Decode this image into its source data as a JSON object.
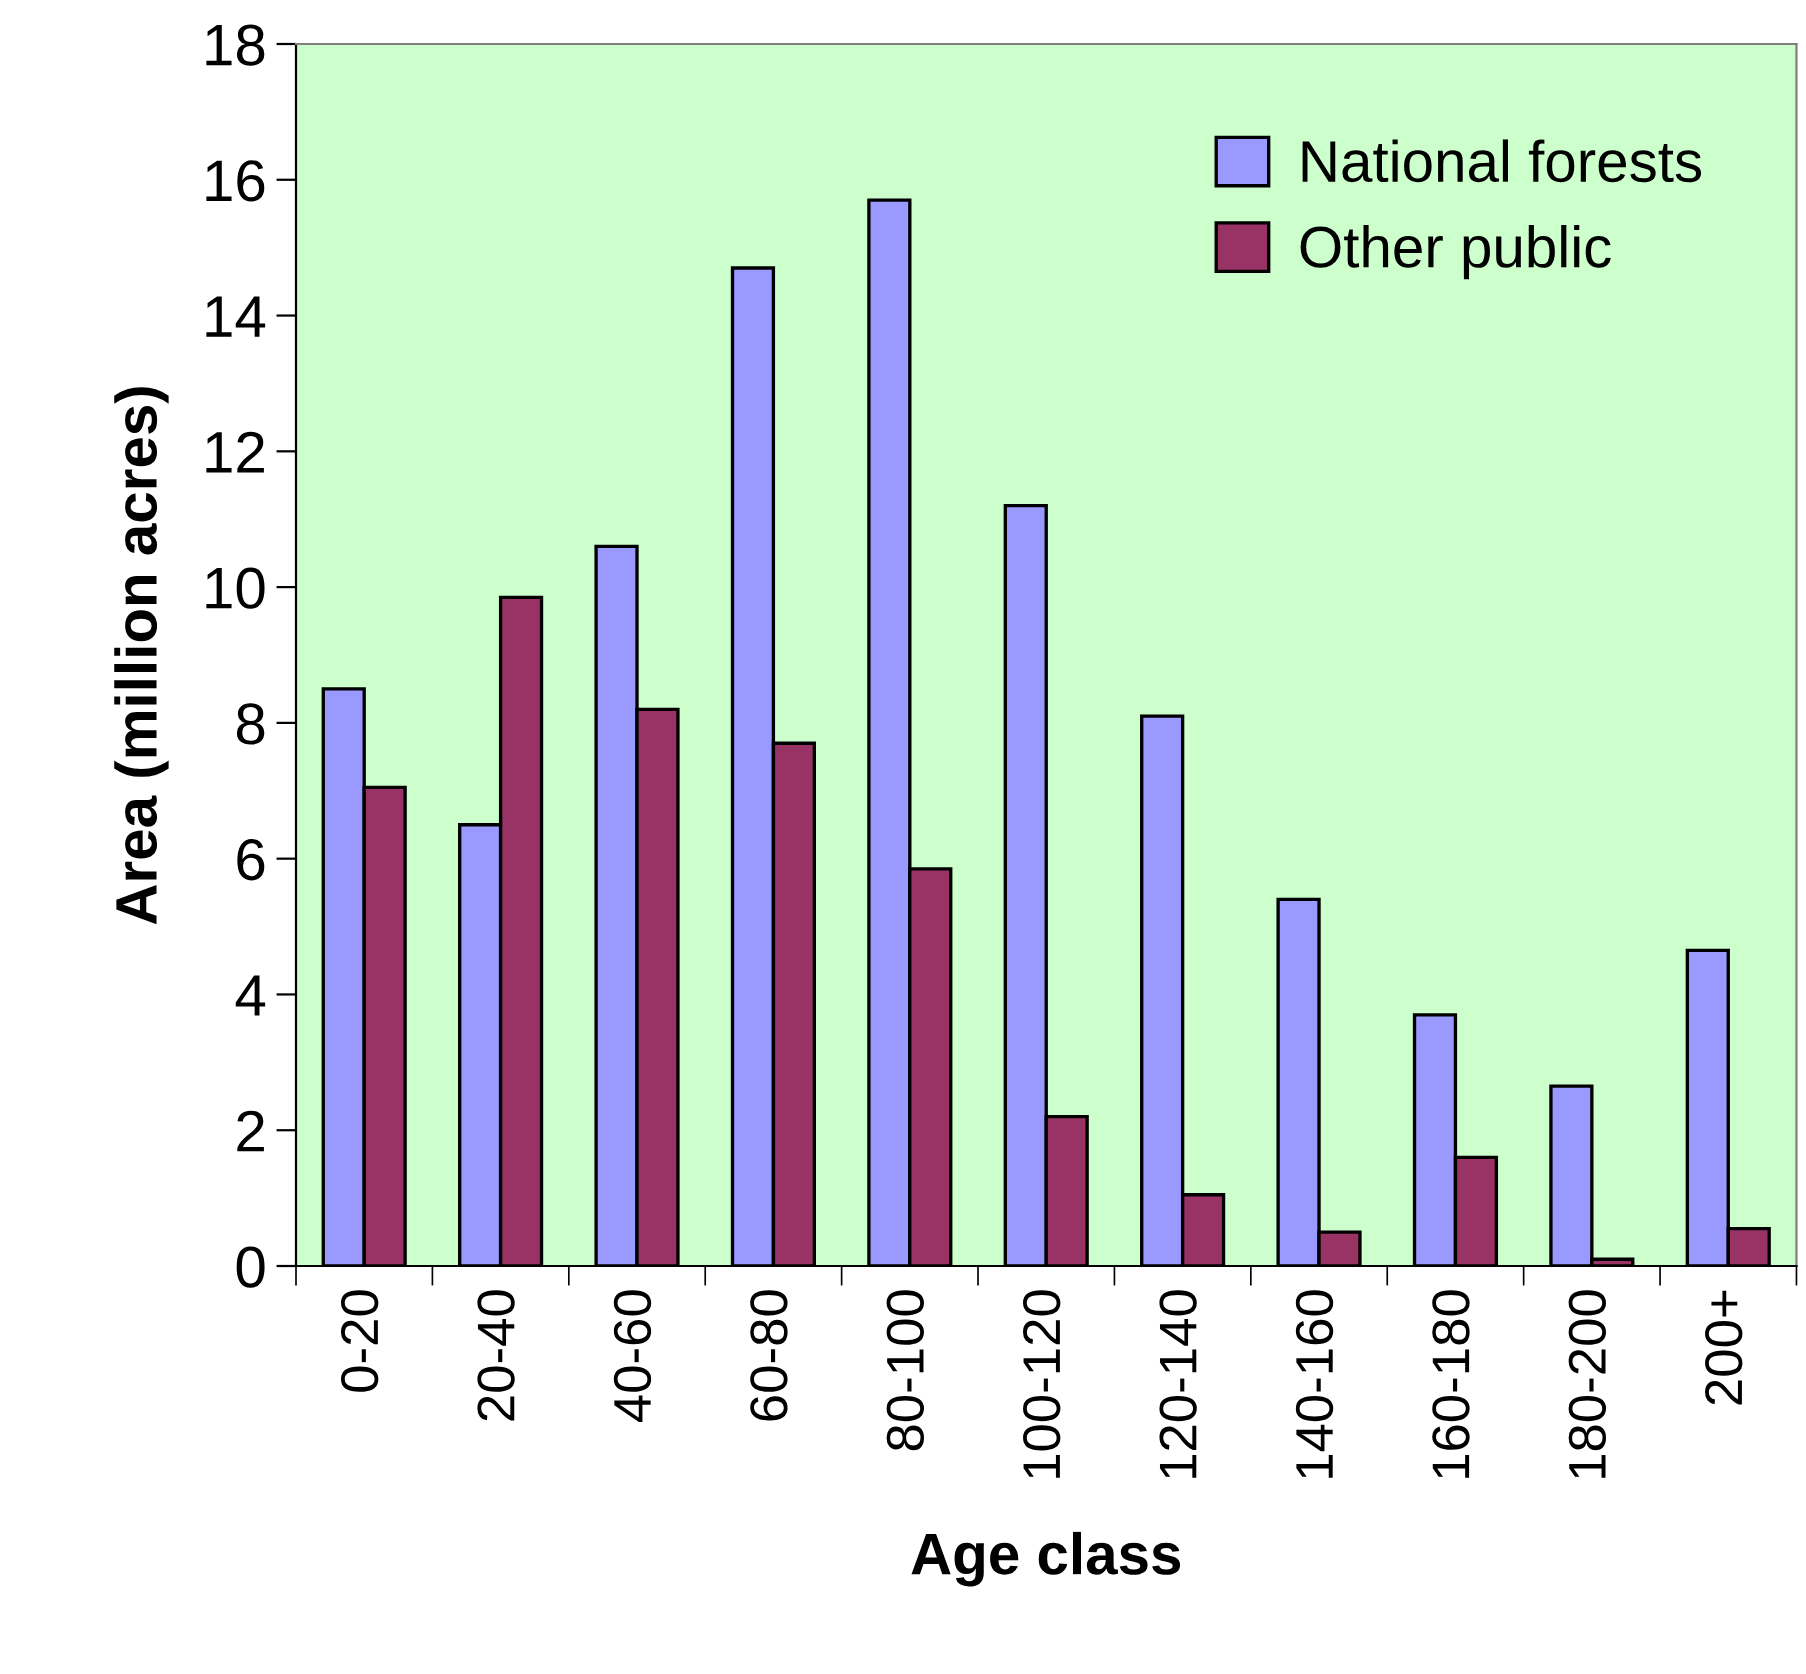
{
  "chart_data": {
    "type": "bar",
    "xlabel": "Age class",
    "ylabel": "Area (million acres)",
    "categories": [
      "0-20",
      "20-40",
      "40-60",
      "60-80",
      "80-100",
      "100-120",
      "120-140",
      "140-160",
      "160-180",
      "180-200",
      "200+"
    ],
    "series": [
      {
        "name": "National forests",
        "color": "#9999ff",
        "values": [
          8.5,
          6.5,
          10.6,
          14.7,
          15.7,
          11.2,
          8.1,
          5.4,
          3.7,
          2.65,
          4.65
        ]
      },
      {
        "name": "Other public",
        "color": "#993366",
        "values": [
          7.05,
          9.85,
          8.2,
          7.7,
          5.85,
          2.2,
          1.05,
          0.5,
          1.6,
          0.1,
          0.55
        ]
      }
    ],
    "ylim": [
      0,
      18
    ],
    "yticks": [
      0,
      2,
      4,
      6,
      8,
      10,
      12,
      14,
      16,
      18
    ],
    "grid": false,
    "legend": "top right"
  }
}
